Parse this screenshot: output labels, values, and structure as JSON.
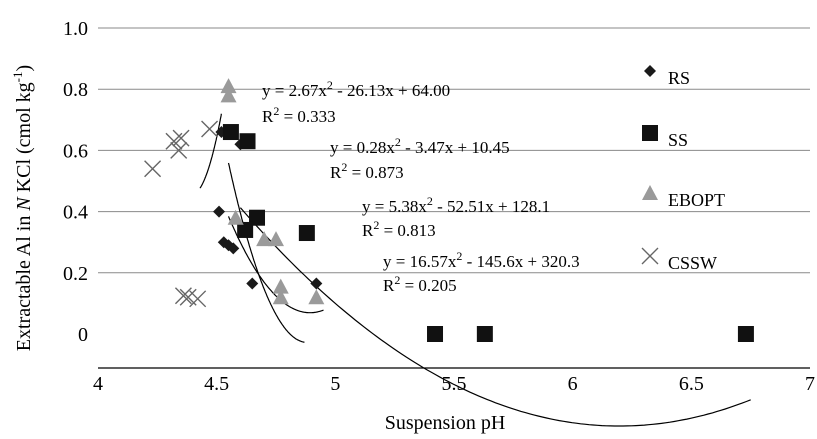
{
  "chart_data": {
    "type": "scatter",
    "xlabel": "Suspension pH",
    "ylabel": "Extractable Al in N KCl (cmol kg",
    "ylabel_italic": "N",
    "ylabel_sup": "-1",
    "ylabel_close": ")",
    "xlim": [
      4,
      7
    ],
    "ylim": [
      0,
      1.0
    ],
    "x_ticks": [
      4,
      4.5,
      5,
      5.5,
      6,
      6.5,
      7
    ],
    "x_tick_labels": [
      "4",
      "4.5",
      "5",
      "5.5",
      "6",
      "6.5",
      "7"
    ],
    "y_ticks": [
      0,
      0.2,
      0.4,
      0.6,
      0.8,
      1.0
    ],
    "y_tick_labels": [
      "0",
      "0.2",
      "0.4",
      "0.6",
      "0.8",
      "1.0"
    ],
    "grid": "horizontal",
    "legend_placement": "right",
    "series": [
      {
        "name": "RS",
        "marker": "diamond",
        "color": "#1a1a1a",
        "points": [
          [
            4.51,
            0.4
          ],
          [
            4.53,
            0.3
          ],
          [
            4.55,
            0.29
          ],
          [
            4.57,
            0.28
          ],
          [
            4.52,
            0.66
          ],
          [
            4.6,
            0.62
          ],
          [
            4.65,
            0.165
          ],
          [
            4.92,
            0.165
          ]
        ],
        "fit": {
          "a": 2.67,
          "b": -26.13,
          "c": 64.0,
          "x_range": [
            4.55,
            4.95
          ]
        },
        "equation": "y = 2.67x",
        "equation_tail": " - 26.13x + 64.00",
        "r2_label": "R",
        "r2_value": " = 0.333"
      },
      {
        "name": "SS",
        "marker": "square",
        "color": "#111111",
        "points": [
          [
            4.56,
            0.66
          ],
          [
            4.63,
            0.63
          ],
          [
            4.67,
            0.38
          ],
          [
            4.62,
            0.34
          ],
          [
            4.88,
            0.33
          ],
          [
            5.42,
            0.0
          ],
          [
            5.63,
            0.0
          ],
          [
            6.73,
            0.0
          ]
        ],
        "fit": {
          "a": 0.28,
          "b": -3.47,
          "c": 10.45,
          "x_range": [
            4.6,
            6.75
          ]
        },
        "equation": "y = 0.28x",
        "equation_tail": " - 3.47x + 10.45",
        "r2_label": "R",
        "r2_value": " = 0.873"
      },
      {
        "name": "EBOPT",
        "marker": "triangle",
        "color": "#9a9a9a",
        "points": [
          [
            4.55,
            0.81
          ],
          [
            4.55,
            0.78
          ],
          [
            4.58,
            0.38
          ],
          [
            4.7,
            0.31
          ],
          [
            4.75,
            0.31
          ],
          [
            4.77,
            0.155
          ],
          [
            4.77,
            0.12
          ],
          [
            4.92,
            0.12
          ]
        ],
        "fit": {
          "a": 5.38,
          "b": -52.51,
          "c": 128.1,
          "x_range": [
            4.55,
            4.87
          ]
        },
        "equation": "y = 5.38x",
        "equation_tail": " - 52.51x + 128.1",
        "r2_label": "R",
        "r2_value": " = 0.813"
      },
      {
        "name": "CSSW",
        "marker": "x",
        "color": "#666666",
        "points": [
          [
            4.23,
            0.54
          ],
          [
            4.32,
            0.63
          ],
          [
            4.34,
            0.6
          ],
          [
            4.35,
            0.64
          ],
          [
            4.47,
            0.67
          ],
          [
            4.36,
            0.125
          ],
          [
            4.38,
            0.12
          ],
          [
            4.42,
            0.115
          ]
        ],
        "fit": {
          "a": 16.57,
          "b": -145.6,
          "c": 320.3,
          "x_range": [
            4.43,
            4.52
          ]
        },
        "equation": "y = 16.57x",
        "equation_tail": " - 145.6x + 320.3",
        "r2_label": "R",
        "r2_value": " = 0.205"
      }
    ],
    "equation_sup": "2"
  }
}
